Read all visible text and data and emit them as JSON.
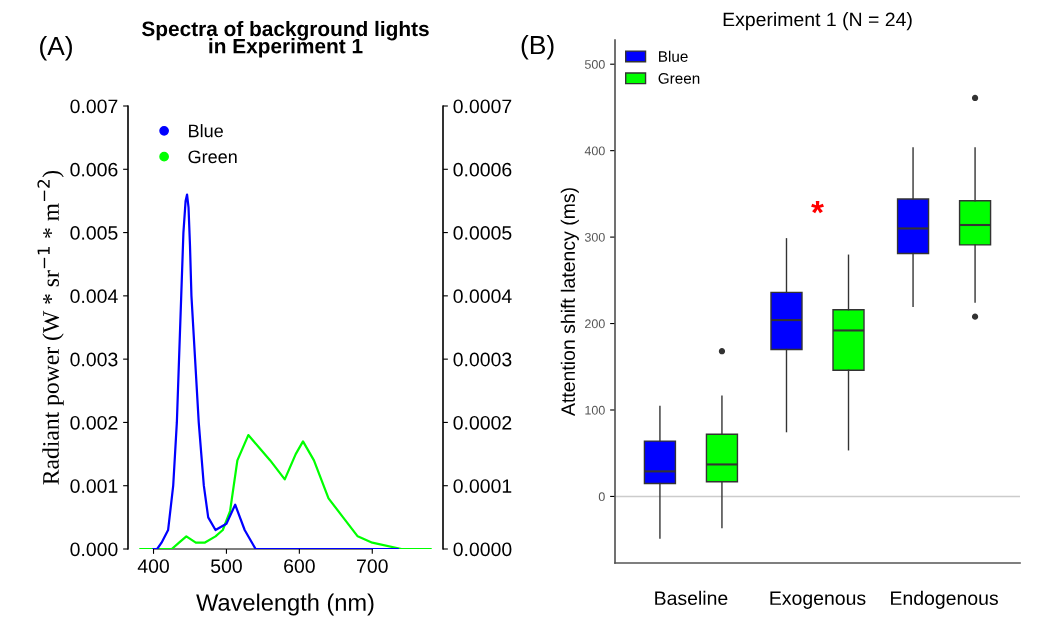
{
  "chart_data": [
    {
      "type": "line",
      "title": "Spectra of background lights\nin Experiment 1",
      "xlabel": "Wavelength (nm)",
      "ylabel": "Radiant power (W * sr$^{−1}$ * m$^{−2}$)",
      "annotations": [
        "(A)"
      ],
      "xlim": [
        365,
        797
      ],
      "xticks": [
        400,
        500,
        600,
        700
      ],
      "ylim": [
        0,
        0.007
      ],
      "yticks": [
        {
          "value": 0,
          "label": "0.000"
        },
        {
          "value": 0.001,
          "label": "0.001"
        },
        {
          "value": 0.002,
          "label": "0.002"
        },
        {
          "value": 0.003,
          "label": "0.003"
        },
        {
          "value": 0.004,
          "label": "0.004"
        },
        {
          "value": 0.005,
          "label": "0.005"
        },
        {
          "value": 0.006,
          "label": "0.006"
        },
        {
          "value": 0.007,
          "label": "0.007"
        }
      ],
      "y2lim": [
        0,
        0.0007
      ],
      "y2ticks": [
        {
          "value": 0,
          "label": "0.0000"
        },
        {
          "value": 0.0001,
          "label": "0.0001"
        },
        {
          "value": 0.0002,
          "label": "0.0002"
        },
        {
          "value": 0.0003,
          "label": "0.0003"
        },
        {
          "value": 0.0004,
          "label": "0.0004"
        },
        {
          "value": 0.0005,
          "label": "0.0005"
        },
        {
          "value": 0.0006,
          "label": "0.0006"
        },
        {
          "value": 0.0007,
          "label": "0.0007"
        }
      ],
      "grid": false,
      "legend": "top left",
      "series": [
        {
          "name": "Blue",
          "color": "#0000ff",
          "x": [
            400,
            405,
            411,
            420,
            427,
            432,
            435,
            438,
            441,
            444,
            446,
            448,
            450,
            452,
            457,
            462,
            469,
            475,
            485,
            500,
            512,
            525,
            540,
            550,
            735
          ],
          "values": [
            0,
            0,
            0.0001,
            0.0003,
            0.001,
            0.002,
            0.003,
            0.004,
            0.005,
            0.0055,
            0.0056,
            0.0054,
            0.0048,
            0.004,
            0.003,
            0.002,
            0.001,
            0.0005,
            0.0003,
            0.0004,
            0.0007,
            0.0003,
            0,
            0,
            0
          ]
        },
        {
          "name": "Green",
          "color": "#00ff00",
          "x": [
            382,
            425,
            435,
            445,
            458,
            470,
            485,
            495,
            505,
            515,
            530,
            545,
            560,
            580,
            595,
            605,
            620,
            640,
            660,
            680,
            700,
            740,
            780
          ],
          "values": [
            0,
            0,
            0.0001,
            0.0002,
            0.0001,
            0.0001,
            0.0002,
            0.0003,
            0.0006,
            0.0014,
            0.0018,
            0.0016,
            0.0014,
            0.0011,
            0.0015,
            0.0017,
            0.0014,
            0.0008,
            0.0005,
            0.0002,
            0.0001,
            0,
            0
          ]
        }
      ]
    },
    {
      "type": "box",
      "title": "Experiment 1 (N = 24)",
      "ylabel": "Attention shift latency (ms)",
      "annotations": [
        "(B)",
        "*"
      ],
      "categories": [
        "Baseline",
        "Exogenous",
        "Endogenous"
      ],
      "ylim": [
        -77,
        528
      ],
      "yticks": [
        0,
        100,
        200,
        300,
        400,
        500
      ],
      "grid": false,
      "legend": "top left",
      "ref_lines": [
        {
          "axis": "y",
          "value": 0,
          "color": "#cccccc"
        }
      ],
      "series": [
        {
          "name": "Blue",
          "color": "#0000ff",
          "boxes": [
            {
              "low": -48,
              "q1": 15,
              "median": 29,
              "q3": 64,
              "high": 104
            },
            {
              "low": 75,
              "q1": 170,
              "median": 204,
              "q3": 236,
              "high": 298
            },
            {
              "low": 220,
              "q1": 281,
              "median": 310,
              "q3": 344,
              "high": 403
            }
          ]
        },
        {
          "name": "Green",
          "color": "#00ff00",
          "boxes": [
            {
              "low": -36,
              "q1": 17,
              "median": 37,
              "q3": 72,
              "high": 116,
              "outliers": [
                168
              ]
            },
            {
              "low": 54,
              "q1": 146,
              "median": 192,
              "q3": 216,
              "high": 279
            },
            {
              "low": 225,
              "q1": 291,
              "median": 314,
              "q3": 342,
              "high": 403,
              "outliers": [
                461,
                208
              ]
            }
          ]
        }
      ]
    }
  ]
}
